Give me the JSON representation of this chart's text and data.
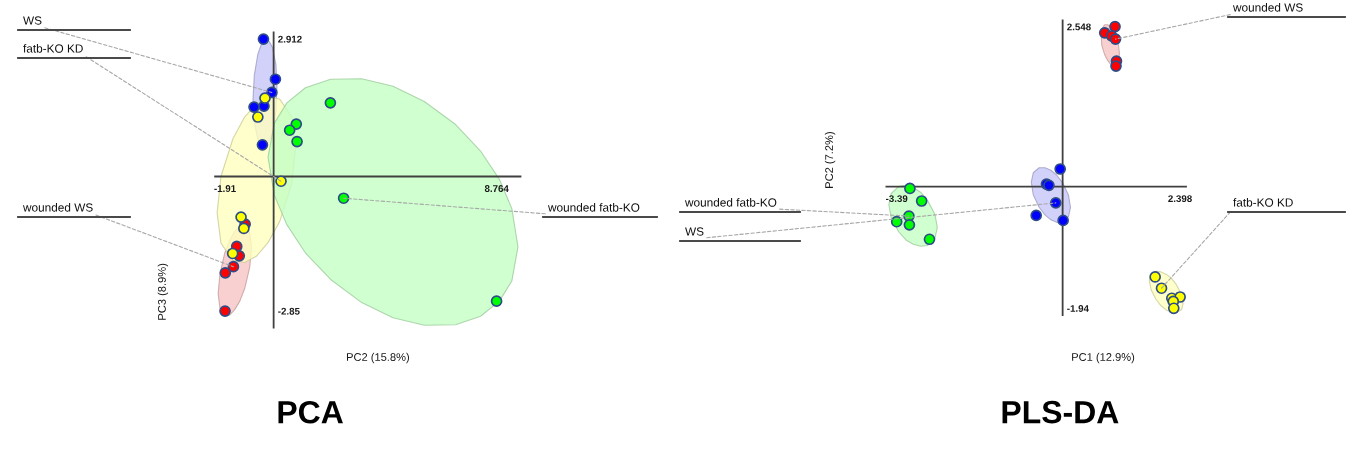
{
  "chart_data": [
    {
      "type": "scatter",
      "title": "PCA",
      "xlabel": "PC2 (15.8%)",
      "ylabel": "PC3 (8.9%)",
      "marker": "circle",
      "xlim": [
        -2.3,
        9.7
      ],
      "ylim": [
        -3.2,
        3.05
      ],
      "xticks": [
        -1.91,
        8.764
      ],
      "yticks": [
        -2.85,
        2.912
      ],
      "series": [
        {
          "name": "wounded WS",
          "color": "#ff0000",
          "x": [
            -1.12,
            -1.45,
            -1.35,
            -1.58,
            -1.9,
            -1.91
          ],
          "values": [
            -1.01,
            -1.48,
            -1.68,
            -1.91,
            -2.04,
            -2.85
          ]
        },
        {
          "name": "WS",
          "color": "#0000ff",
          "x": [
            -0.4,
            0.07,
            -0.07,
            -0.77,
            -0.38,
            -0.44
          ],
          "values": [
            2.91,
            2.06,
            1.78,
            1.47,
            1.49,
            0.67
          ]
        },
        {
          "name": "fatb-KO KD",
          "color": "#ffff00",
          "x": [
            -0.34,
            -0.62,
            0.29,
            -1.28,
            -1.17,
            -1.61
          ],
          "values": [
            1.66,
            1.26,
            -0.1,
            -0.86,
            -1.1,
            -1.63
          ]
        },
        {
          "name": "wounded fatb-KO",
          "color": "#00ff00",
          "x": [
            2.23,
            0.89,
            0.63,
            0.92,
            2.75,
            8.76
          ],
          "values": [
            1.56,
            1.11,
            0.98,
            0.74,
            -0.46,
            -2.64
          ]
        },
        {
          "type": "line",
          "color": "#f8c4c4",
          "x": [
            -2.18,
            -2.11,
            -1.92,
            -1.72,
            -1.53,
            -1.33,
            -1.13,
            -0.94,
            -0.87
          ],
          "values": [
            null,
            null,
            null,
            null,
            null,
            null,
            null,
            null,
            null
          ],
          "lower": [
            -2.48,
            -2.79,
            -2.95,
            -2.93,
            -2.82,
            -2.64,
            -2.36,
            -1.92,
            -1.5
          ],
          "upper": [
            -2.48,
            -2.07,
            -1.62,
            -1.35,
            -1.16,
            -1.05,
            -1.03,
            -1.19,
            -1.5
          ]
        },
        {
          "type": "line",
          "color": "#c6c6f8",
          "x": [
            -0.81,
            -0.76,
            -0.62,
            -0.48,
            -0.34,
            -0.2,
            -0.05,
            0.09,
            0.13
          ],
          "values": [
            null,
            null,
            null,
            null,
            null,
            null,
            null,
            null,
            null
          ],
          "lower": [
            1.63,
            1.15,
            0.78,
            0.64,
            0.63,
            0.72,
            0.93,
            1.38,
            1.89
          ],
          "upper": [
            1.63,
            2.14,
            2.59,
            2.8,
            2.89,
            2.88,
            2.74,
            2.37,
            1.89
          ]
        },
        {
          "type": "line",
          "color": "#ffffbe",
          "x": [
            -2.22,
            -2.07,
            -1.6,
            -1.14,
            -0.68,
            -0.22,
            0.24,
            0.71,
            0.86
          ],
          "values": [
            null,
            null,
            null,
            null,
            null,
            null,
            null,
            null,
            null
          ],
          "lower": [
            -0.77,
            -1.41,
            -1.78,
            -1.82,
            -1.69,
            -1.4,
            -0.95,
            -0.15,
            0.62
          ],
          "upper": [
            -0.77,
            0.0,
            0.8,
            1.26,
            1.54,
            1.68,
            1.64,
            1.26,
            0.62
          ]
        },
        {
          "type": "line",
          "color": "#c4ffc4",
          "x": [
            -0.22,
            0.03,
            0.52,
            1.25,
            2.24,
            3.46,
            4.69,
            5.92,
            7.15,
            8.13,
            8.87,
            9.36,
            9.6
          ],
          "values": [
            null,
            null,
            null,
            null,
            null,
            null,
            null,
            null,
            null,
            null,
            null,
            null,
            null
          ],
          "lower": [
            0.41,
            -0.4,
            -1.02,
            -1.62,
            -2.18,
            -2.67,
            -2.99,
            -3.15,
            -3.14,
            -2.96,
            -2.64,
            -2.21,
            -1.49
          ],
          "upper": [
            0.41,
            1.13,
            1.56,
            1.88,
            2.06,
            2.07,
            1.91,
            1.59,
            1.1,
            0.54,
            -0.06,
            -0.68,
            -1.49
          ]
        }
      ]
    },
    {
      "type": "scatter",
      "title": "PLS-DA",
      "xlabel": "PC1 (12.9%)",
      "ylabel": "PC2 (7.2%)",
      "marker": "circle",
      "xlim": [
        -3.6,
        2.52
      ],
      "ylim": [
        -2.05,
        2.65
      ],
      "xticks": [
        -3.39,
        2.398
      ],
      "yticks": [
        -1.94,
        2.548
      ],
      "series": [
        {
          "name": "wounded WS",
          "color": "#ff0000",
          "x": [
            1.07,
            0.86,
            1.0,
            1.08,
            1.1,
            1.09
          ],
          "values": [
            2.55,
            2.45,
            2.4,
            2.35,
            2.0,
            1.92
          ]
        },
        {
          "name": "WS",
          "color": "#0000ff",
          "x": [
            -0.05,
            -0.33,
            -0.28,
            -0.14,
            -0.54,
            0.01
          ],
          "values": [
            0.28,
            0.04,
            0.02,
            -0.26,
            -0.46,
            -0.54
          ]
        },
        {
          "name": "fatb-KO KD",
          "color": "#ffff00",
          "x": [
            1.89,
            2.02,
            2.23,
            2.4,
            2.26,
            2.27
          ],
          "values": [
            -1.44,
            -1.62,
            -1.78,
            -1.76,
            -1.83,
            -1.94
          ]
        },
        {
          "name": "wounded fatb-KO",
          "color": "#00ff00",
          "x": [
            -3.12,
            -2.88,
            -3.14,
            -3.39,
            -3.13,
            -2.72
          ],
          "values": [
            -0.03,
            -0.23,
            -0.47,
            -0.56,
            -0.61,
            -0.84
          ]
        },
        {
          "type": "line",
          "color": "#f8c4c4",
          "x": [
            0.79,
            0.8,
            0.86,
            0.92,
            0.97,
            1.03,
            1.09,
            1.14,
            1.16
          ],
          "values": [
            null,
            null,
            null,
            null,
            null,
            null,
            null,
            null,
            null
          ],
          "lower": [
            2.39,
            2.25,
            2.1,
            2.01,
            1.96,
            1.93,
            1.94,
            2.0,
            2.12
          ],
          "upper": [
            2.39,
            2.51,
            2.58,
            2.58,
            2.55,
            2.5,
            2.41,
            2.26,
            2.12
          ]
        },
        {
          "type": "line",
          "color": "#c6c6f8",
          "x": [
            -0.64,
            -0.6,
            -0.48,
            -0.36,
            -0.24,
            -0.12,
            0.0,
            0.12,
            0.16
          ],
          "values": [
            null,
            null,
            null,
            null,
            null,
            null,
            null,
            null,
            null
          ],
          "lower": [
            0.07,
            -0.13,
            -0.33,
            -0.45,
            -0.53,
            -0.57,
            -0.57,
            -0.48,
            -0.33
          ],
          "upper": [
            0.07,
            0.22,
            0.3,
            0.3,
            0.26,
            0.18,
            0.06,
            -0.14,
            -0.33
          ]
        },
        {
          "type": "line",
          "color": "#ffffbe",
          "x": [
            1.77,
            1.81,
            1.91,
            2.01,
            2.12,
            2.22,
            2.32,
            2.43,
            2.46
          ],
          "values": [
            null,
            null,
            null,
            null,
            null,
            null,
            null,
            null,
            null
          ],
          "lower": [
            -1.5,
            -1.65,
            -1.8,
            -1.9,
            -1.97,
            -2.0,
            -2.01,
            -1.96,
            -1.86
          ],
          "upper": [
            -1.5,
            -1.4,
            -1.35,
            -1.36,
            -1.4,
            -1.46,
            -1.56,
            -1.72,
            -1.86
          ]
        },
        {
          "type": "line",
          "color": "#c4ffc4",
          "x": [
            -3.55,
            -3.5,
            -3.35,
            -3.2,
            -3.05,
            -2.9,
            -2.76,
            -2.61,
            -2.56
          ],
          "values": [
            null,
            null,
            null,
            null,
            null,
            null,
            null,
            null,
            null
          ],
          "lower": [
            -0.29,
            -0.5,
            -0.72,
            -0.85,
            -0.92,
            -0.95,
            -0.94,
            -0.83,
            -0.65
          ],
          "upper": [
            -0.29,
            -0.11,
            0.0,
            0.02,
            -0.02,
            -0.09,
            -0.22,
            -0.44,
            -0.65
          ]
        }
      ]
    }
  ]
}
